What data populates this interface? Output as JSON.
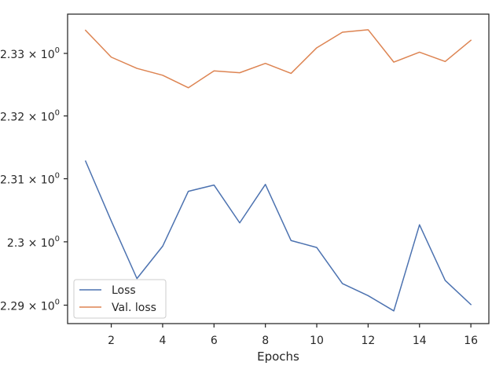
{
  "chart_data": {
    "type": "line",
    "title": "",
    "xlabel": "Epochs",
    "ylabel": "",
    "x": [
      1,
      2,
      3,
      4,
      5,
      6,
      7,
      8,
      9,
      10,
      11,
      12,
      13,
      14,
      15,
      16
    ],
    "xlim": [
      0.3,
      16.7
    ],
    "ylim": [
      2.2871,
      2.3363
    ],
    "y_scale": "log",
    "grid": false,
    "legend_position": "lower-left",
    "x_ticks": [
      {
        "value": 2,
        "label": "2"
      },
      {
        "value": 4,
        "label": "4"
      },
      {
        "value": 6,
        "label": "6"
      },
      {
        "value": 8,
        "label": "8"
      },
      {
        "value": 10,
        "label": "10"
      },
      {
        "value": 12,
        "label": "12"
      },
      {
        "value": 14,
        "label": "14"
      },
      {
        "value": 16,
        "label": "16"
      }
    ],
    "y_ticks": [
      {
        "value": 2.29,
        "mantissa": "2.29",
        "times": "×",
        "base": "10",
        "exp": "0"
      },
      {
        "value": 2.3,
        "mantissa": "2.3",
        "times": "×",
        "base": "10",
        "exp": "0"
      },
      {
        "value": 2.31,
        "mantissa": "2.31",
        "times": "×",
        "base": "10",
        "exp": "0"
      },
      {
        "value": 2.32,
        "mantissa": "2.32",
        "times": "×",
        "base": "10",
        "exp": "0"
      },
      {
        "value": 2.33,
        "mantissa": "2.33",
        "times": "×",
        "base": "10",
        "exp": "0"
      }
    ],
    "series": [
      {
        "name": "Loss",
        "color": "#4c72b0",
        "values": [
          2.3128,
          2.3033,
          2.2942,
          2.2993,
          2.308,
          2.309,
          2.303,
          2.3091,
          2.3002,
          2.2991,
          2.2934,
          2.2915,
          2.2891,
          2.3027,
          2.2939,
          2.2901
        ]
      },
      {
        "name": "Val. loss",
        "color": "#dd8452",
        "values": [
          2.3337,
          2.3294,
          2.3276,
          2.3265,
          2.3245,
          2.3272,
          2.3269,
          2.3284,
          2.3268,
          2.3309,
          2.3334,
          2.3338,
          2.3286,
          2.3302,
          2.3287,
          2.3321
        ]
      }
    ]
  }
}
